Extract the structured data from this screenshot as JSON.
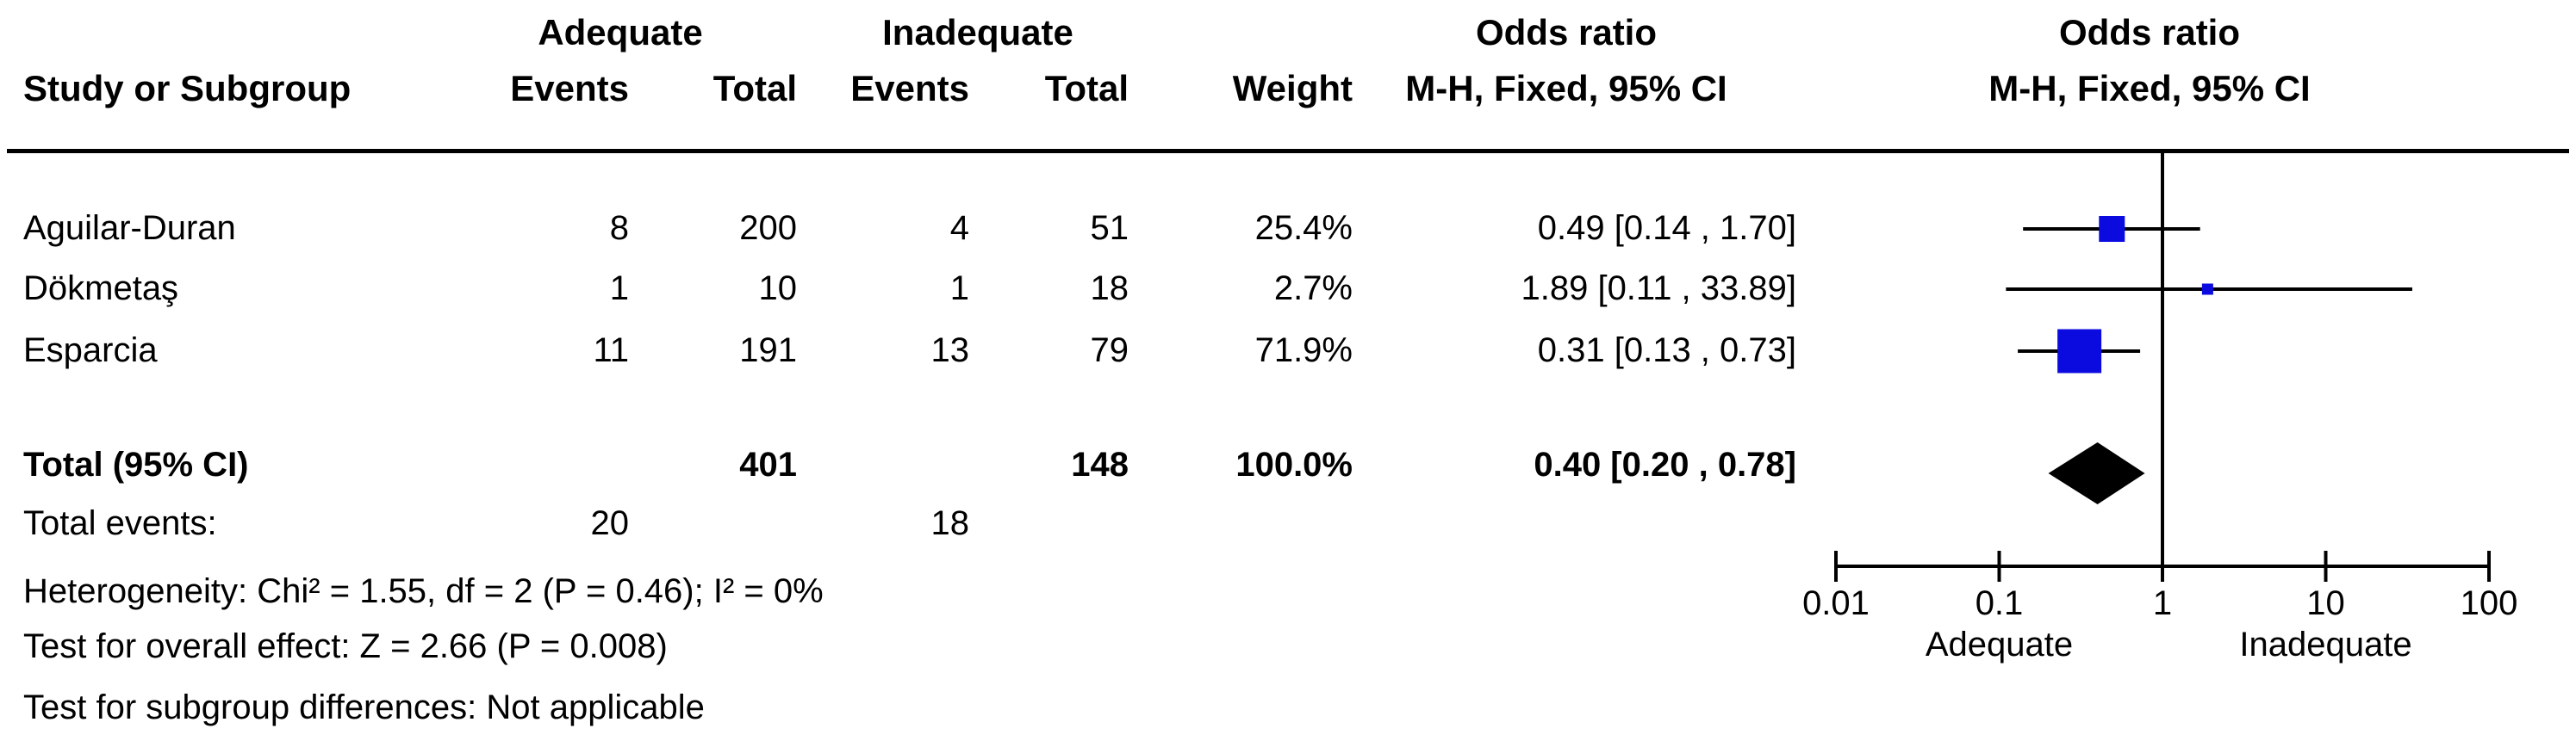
{
  "colors": {
    "marker_blue": "#0b0be0",
    "black": "#000000",
    "background": "#ffffff"
  },
  "header": {
    "group_adequate": "Adequate",
    "group_inadequate": "Inadequate",
    "odds_ratio_left": "Odds ratio",
    "odds_ratio_right": "Odds ratio",
    "study": "Study or Subgroup",
    "events_adequate": "Events",
    "total_adequate": "Total",
    "events_inadequate": "Events",
    "total_inadequate": "Total",
    "weight": "Weight",
    "mh_fixed_left": "M-H, Fixed, 95% CI",
    "mh_fixed_right": "M-H, Fixed, 95% CI"
  },
  "rows": [
    {
      "study": "Aguilar-Duran",
      "events1": "8",
      "total1": "200",
      "events2": "4",
      "total2": "51",
      "weight": "25.4%",
      "or_ci": "0.49 [0.14 , 1.70]"
    },
    {
      "study": "Dökmetaş",
      "events1": "1",
      "total1": "10",
      "events2": "1",
      "total2": "18",
      "weight": "2.7%",
      "or_ci": "1.89 [0.11 , 33.89]"
    },
    {
      "study": "Esparcia",
      "events1": "11",
      "total1": "191",
      "events2": "13",
      "total2": "79",
      "weight": "71.9%",
      "or_ci": "0.31 [0.13 , 0.73]"
    }
  ],
  "total_row": {
    "label": "Total (95% CI)",
    "total1": "401",
    "total2": "148",
    "weight": "100.0%",
    "or_ci": "0.40 [0.20 , 0.78]"
  },
  "total_events": {
    "label": "Total events:",
    "adequate": "20",
    "inadequate": "18"
  },
  "footnotes": {
    "heterogeneity": "Heterogeneity: Chi² = 1.55, df = 2 (P = 0.46); I² = 0%",
    "overall_effect": "Test for overall effect: Z = 2.66 (P = 0.008)",
    "subgroup": "Test for subgroup differences: Not applicable"
  },
  "chart_data": {
    "type": "forest",
    "title": "Odds ratio",
    "effect_measure": "M-H, Fixed, 95% CI",
    "x_scale": "log10",
    "xlim": [
      0.01,
      100
    ],
    "null_line": 1,
    "x_ticks": [
      0.01,
      0.1,
      1,
      10,
      100
    ],
    "x_tick_labels": [
      "0.01",
      "0.1",
      "1",
      "10",
      "100"
    ],
    "left_direction_label": "Adequate",
    "right_direction_label": "Inadequate",
    "studies": [
      {
        "name": "Aguilar-Duran",
        "or": 0.49,
        "ci_low": 0.14,
        "ci_high": 1.7,
        "weight_pct": 25.4
      },
      {
        "name": "Dökmetaş",
        "or": 1.89,
        "ci_low": 0.11,
        "ci_high": 33.89,
        "weight_pct": 2.7
      },
      {
        "name": "Esparcia",
        "or": 0.31,
        "ci_low": 0.13,
        "ci_high": 0.73,
        "weight_pct": 71.9
      }
    ],
    "total": {
      "or": 0.4,
      "ci_low": 0.2,
      "ci_high": 0.78,
      "weight_pct": 100.0
    }
  }
}
